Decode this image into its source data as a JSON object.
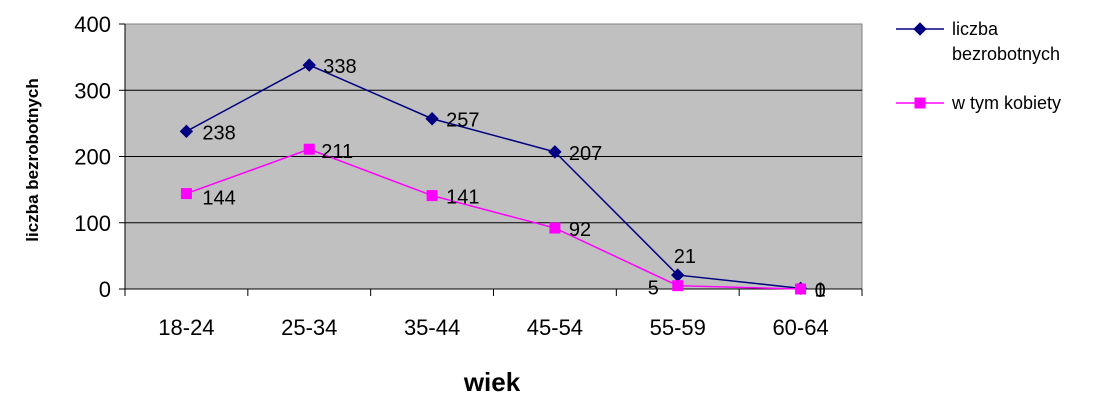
{
  "chart_data": {
    "type": "line",
    "title": "",
    "xlabel": "wiek",
    "ylabel": "liczba bezrobotnych",
    "categories": [
      "18-24",
      "25-34",
      "35-44",
      "45-54",
      "55-59",
      "60-64"
    ],
    "ylim": [
      0,
      400
    ],
    "yticks": [
      "0",
      "100",
      "200",
      "300",
      "400"
    ],
    "grid": true,
    "legend_position": "right",
    "background_color": "#c0c0c0",
    "series": [
      {
        "name": "liczba bezrobotnych",
        "legend_lines": [
          "liczba",
          "bezrobotnych"
        ],
        "values": [
          238,
          338,
          257,
          207,
          21,
          1
        ],
        "labels": [
          "238",
          "338",
          "257",
          "207",
          "21",
          "1"
        ],
        "color": "#000080",
        "marker": "diamond"
      },
      {
        "name": "w tym kobiety",
        "legend_lines": [
          "w tym kobiety"
        ],
        "values": [
          144,
          211,
          141,
          92,
          5,
          0
        ],
        "labels": [
          "144",
          "211",
          "141",
          "92",
          "5",
          "0"
        ],
        "color": "#ff00ff",
        "marker": "square"
      }
    ]
  }
}
